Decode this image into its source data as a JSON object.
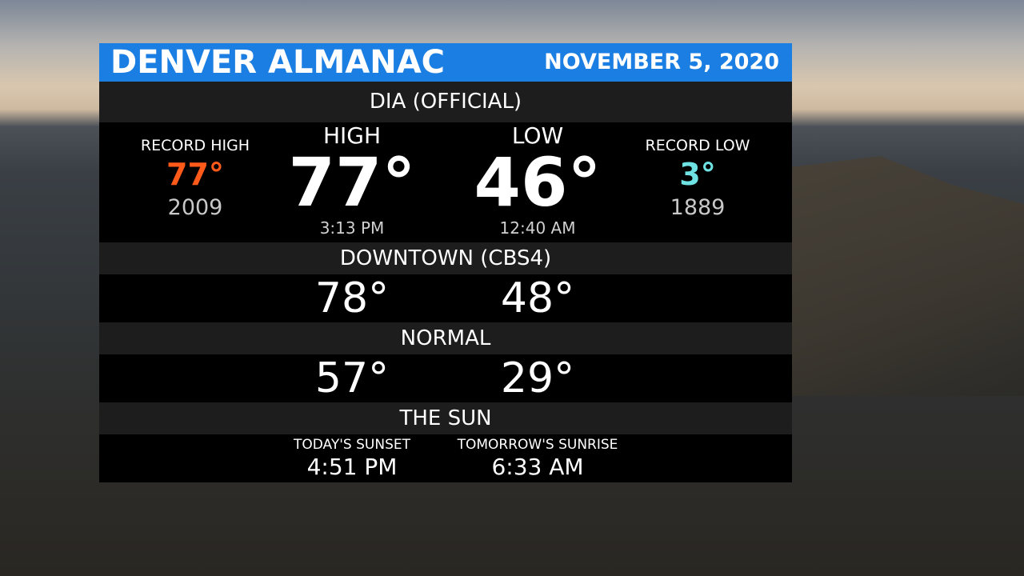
{
  "header": {
    "title": "DENVER ALMANAC",
    "date": "NOVEMBER 5, 2020",
    "color": "#1b7ee3"
  },
  "dia": {
    "label": "DIA (OFFICIAL)",
    "record_high": {
      "label": "RECORD HIGH",
      "value": "77°",
      "year": "2009",
      "color": "#ff5a1a"
    },
    "high": {
      "label": "HIGH",
      "value": "77°",
      "time": "3:13 PM"
    },
    "low": {
      "label": "LOW",
      "value": "46°",
      "time": "12:40 AM"
    },
    "record_low": {
      "label": "RECORD LOW",
      "value": "3°",
      "year": "1889",
      "color": "#6fe3e3"
    }
  },
  "downtown": {
    "label": "DOWNTOWN (CBS4)",
    "high": "78°",
    "low": "48°"
  },
  "normal": {
    "label": "NORMAL",
    "high": "57°",
    "low": "29°"
  },
  "sun": {
    "label": "THE SUN",
    "sunset_label": "TODAY'S SUNSET",
    "sunset": "4:51 PM",
    "sunrise_label": "TOMORROW'S SUNRISE",
    "sunrise": "6:33 AM"
  }
}
